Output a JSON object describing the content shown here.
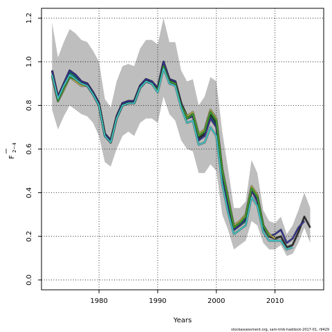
{
  "chart_data": {
    "type": "line",
    "xlabel": "Years",
    "ylabel": "F",
    "ylabel_sub": "2−4",
    "xlim": [
      1970.2,
      2018.3
    ],
    "ylim": [
      -0.045,
      1.245
    ],
    "x_ticks": [
      1980,
      1990,
      2000,
      2010
    ],
    "y_ticks": [
      0.0,
      0.2,
      0.4,
      0.6,
      0.8,
      1.0,
      1.2
    ],
    "x_tick_labels": [
      "1980",
      "1990",
      "2000",
      "2010"
    ],
    "y_tick_labels": [
      "0.0",
      "0.2",
      "0.4",
      "0.6",
      "0.8",
      "1.0",
      "1.2"
    ],
    "grid": true,
    "footer": "stockassessment.org, sam-tmb-haddock-2017-01, r9429",
    "confidence_band": {
      "color": "#bebebe",
      "x": [
        1972,
        1973,
        1974,
        1975,
        1976,
        1977,
        1978,
        1979,
        1980,
        1981,
        1982,
        1983,
        1984,
        1985,
        1986,
        1987,
        1988,
        1989,
        1990,
        1991,
        1992,
        1993,
        1994,
        1995,
        1996,
        1997,
        1998,
        1999,
        2000,
        2001,
        2002,
        2003,
        2004,
        2005,
        2006,
        2007,
        2008,
        2009,
        2010,
        2011,
        2012,
        2013,
        2014,
        2015,
        2016
      ],
      "upper": [
        1.18,
        1.02,
        1.09,
        1.15,
        1.13,
        1.1,
        1.09,
        1.05,
        1.0,
        0.83,
        0.79,
        0.91,
        0.98,
        0.99,
        0.98,
        1.06,
        1.1,
        1.1,
        1.08,
        1.2,
        1.09,
        1.09,
        0.96,
        0.91,
        0.92,
        0.8,
        0.84,
        0.93,
        0.91,
        0.68,
        0.51,
        0.33,
        0.33,
        0.36,
        0.55,
        0.49,
        0.32,
        0.27,
        0.26,
        0.29,
        0.21,
        0.25,
        0.32,
        0.4,
        0.33
      ],
      "lower": [
        0.78,
        0.69,
        0.75,
        0.8,
        0.78,
        0.76,
        0.75,
        0.72,
        0.66,
        0.54,
        0.52,
        0.6,
        0.66,
        0.68,
        0.66,
        0.72,
        0.74,
        0.74,
        0.72,
        0.84,
        0.76,
        0.73,
        0.64,
        0.6,
        0.59,
        0.49,
        0.49,
        0.53,
        0.5,
        0.3,
        0.23,
        0.14,
        0.16,
        0.18,
        0.27,
        0.25,
        0.17,
        0.14,
        0.14,
        0.16,
        0.11,
        0.12,
        0.17,
        0.24,
        0.17
      ]
    },
    "series": [
      {
        "color": "#0c8070",
        "x": [
          1972,
          1973,
          1974,
          1975,
          1976,
          1977,
          1978,
          1979,
          1980,
          1981,
          1982,
          1983,
          1984,
          1985,
          1986,
          1987,
          1988,
          1989,
          1990,
          1991,
          1992,
          1993,
          1994,
          1995,
          1996,
          1997,
          1998,
          1999,
          2000,
          2001,
          2002,
          2003,
          2004,
          2005,
          2006,
          2007,
          2008,
          2009,
          2010,
          2011
        ],
        "values": [
          0.96,
          0.83,
          0.89,
          0.95,
          0.93,
          0.91,
          0.9,
          0.86,
          0.81,
          0.67,
          0.64,
          0.75,
          0.81,
          0.82,
          0.82,
          0.89,
          0.92,
          0.91,
          0.87,
          0.99,
          0.92,
          0.91,
          0.81,
          0.75,
          0.76,
          0.65,
          0.67,
          0.75,
          0.71,
          0.48,
          0.35,
          0.23,
          0.25,
          0.27,
          0.41,
          0.37,
          0.24,
          0.2,
          0.19,
          0.2
        ]
      },
      {
        "color": "#2a2a2a",
        "x": [
          1972,
          1973,
          1974,
          1975,
          1976,
          1977,
          1978,
          1979,
          1980,
          1981,
          1982,
          1983,
          1984,
          1985,
          1986,
          1987,
          1988,
          1989,
          1990,
          1991,
          1992,
          1993,
          1994,
          1995,
          1996,
          1997,
          1998,
          1999,
          2000,
          2001,
          2002,
          2003,
          2004,
          2005,
          2006,
          2007,
          2008,
          2009,
          2010,
          2011,
          2012,
          2013,
          2014,
          2015,
          2016
        ],
        "values": [
          0.96,
          0.84,
          0.9,
          0.96,
          0.94,
          0.91,
          0.9,
          0.86,
          0.81,
          0.67,
          0.64,
          0.75,
          0.81,
          0.82,
          0.82,
          0.89,
          0.92,
          0.91,
          0.88,
          1.0,
          0.92,
          0.91,
          0.81,
          0.75,
          0.76,
          0.65,
          0.67,
          0.76,
          0.72,
          0.49,
          0.36,
          0.24,
          0.26,
          0.28,
          0.42,
          0.38,
          0.25,
          0.2,
          0.19,
          0.2,
          0.15,
          0.16,
          0.22,
          0.29,
          0.24
        ]
      },
      {
        "color": "#31318c",
        "x": [
          1972,
          1973,
          1974,
          1975,
          1976,
          1977,
          1978,
          1979,
          1980,
          1981,
          1982,
          1983,
          1984,
          1985,
          1986,
          1987,
          1988,
          1989,
          1990,
          1991,
          1992,
          1993,
          1994,
          1995,
          1996,
          1997,
          1998,
          1999,
          2000,
          2001,
          2002,
          2003,
          2004,
          2005,
          2006,
          2007,
          2008,
          2009,
          2010,
          2011,
          2012,
          2013,
          2014,
          2015
        ],
        "values": [
          0.96,
          0.84,
          0.9,
          0.96,
          0.94,
          0.91,
          0.9,
          0.86,
          0.81,
          0.67,
          0.64,
          0.75,
          0.81,
          0.82,
          0.82,
          0.89,
          0.92,
          0.91,
          0.88,
          1.0,
          0.92,
          0.91,
          0.81,
          0.74,
          0.75,
          0.64,
          0.66,
          0.74,
          0.7,
          0.48,
          0.34,
          0.23,
          0.25,
          0.28,
          0.41,
          0.36,
          0.24,
          0.2,
          0.21,
          0.23,
          0.17,
          0.19,
          0.24,
          0.27
        ]
      },
      {
        "color": "#a9a94a",
        "x": [
          1972,
          1973,
          1974,
          1975,
          1976,
          1977,
          1978,
          1979,
          1980,
          1981,
          1982,
          1983,
          1984,
          1985,
          1986,
          1987,
          1988,
          1989,
          1990,
          1991,
          1992,
          1993,
          1994,
          1995,
          1996,
          1997,
          1998,
          1999,
          2000,
          2001,
          2002,
          2003,
          2004,
          2005,
          2006,
          2007,
          2008,
          2009,
          2010
        ],
        "values": [
          0.93,
          0.82,
          0.87,
          0.93,
          0.91,
          0.89,
          0.89,
          0.85,
          0.8,
          0.66,
          0.63,
          0.74,
          0.8,
          0.81,
          0.81,
          0.88,
          0.91,
          0.9,
          0.87,
          0.98,
          0.91,
          0.9,
          0.8,
          0.75,
          0.77,
          0.67,
          0.69,
          0.78,
          0.74,
          0.51,
          0.38,
          0.25,
          0.27,
          0.3,
          0.43,
          0.39,
          0.25,
          0.21,
          0.19
        ]
      },
      {
        "color": "#3a9a2e",
        "x": [
          1972,
          1973,
          1974,
          1975,
          1976,
          1977,
          1978,
          1979,
          1980,
          1981,
          1982,
          1983,
          1984,
          1985,
          1986,
          1987,
          1988,
          1989,
          1990,
          1991,
          1992,
          1993,
          1994,
          1995,
          1996,
          1997,
          1998,
          1999,
          2000,
          2001,
          2002,
          2003,
          2004,
          2005,
          2006,
          2007,
          2008,
          2009
        ],
        "values": [
          0.94,
          0.82,
          0.88,
          0.93,
          0.92,
          0.9,
          0.89,
          0.85,
          0.8,
          0.66,
          0.63,
          0.74,
          0.8,
          0.81,
          0.81,
          0.88,
          0.91,
          0.9,
          0.87,
          0.98,
          0.91,
          0.9,
          0.8,
          0.74,
          0.76,
          0.66,
          0.68,
          0.77,
          0.73,
          0.5,
          0.37,
          0.24,
          0.26,
          0.29,
          0.42,
          0.38,
          0.25,
          0.2
        ]
      },
      {
        "color": "#3fbfbf",
        "x": [
          1972,
          1973,
          1974,
          1975,
          1976,
          1977,
          1978,
          1979,
          1980,
          1981,
          1982,
          1983,
          1984,
          1985,
          1986,
          1987,
          1988,
          1989,
          1990,
          1991,
          1992,
          1993,
          1994,
          1995,
          1996,
          1997,
          1998,
          1999,
          2000,
          2001,
          2002,
          2003,
          2004,
          2005,
          2006,
          2007,
          2008,
          2009,
          2010,
          2011,
          2012,
          2013
        ],
        "values": [
          0.94,
          0.83,
          0.89,
          0.94,
          0.92,
          0.9,
          0.89,
          0.85,
          0.8,
          0.66,
          0.63,
          0.74,
          0.8,
          0.81,
          0.81,
          0.88,
          0.91,
          0.9,
          0.86,
          0.97,
          0.9,
          0.89,
          0.79,
          0.72,
          0.73,
          0.62,
          0.63,
          0.7,
          0.66,
          0.44,
          0.31,
          0.21,
          0.23,
          0.25,
          0.38,
          0.34,
          0.22,
          0.18,
          0.18,
          0.18,
          0.14,
          0.15
        ]
      }
    ]
  }
}
